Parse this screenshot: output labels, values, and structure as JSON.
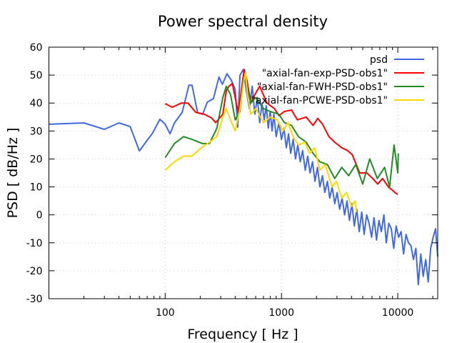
{
  "chart_data": {
    "type": "line",
    "title": "Power spectral density",
    "xlabel": "Frequency [ Hz ]",
    "ylabel": "PSD [ dB/Hz ]",
    "xscale": "log",
    "xlim": [
      10,
      22050
    ],
    "ylim": [
      -30,
      60
    ],
    "xticks": [
      100,
      1000,
      10000
    ],
    "xtick_labels": [
      "100",
      "1000",
      "10000"
    ],
    "yticks": [
      -30,
      -20,
      -10,
      0,
      10,
      20,
      30,
      40,
      50,
      60
    ],
    "ytick_labels": [
      "-30",
      "-20",
      "-10",
      "0",
      "10",
      "20",
      "30",
      "40",
      "50",
      "60"
    ],
    "grid": true,
    "legend_position": "top-right",
    "series": [
      {
        "name": "psd",
        "color": "#4169e1",
        "x": [
          10,
          20,
          30,
          40,
          50,
          60,
          78,
          90,
          100,
          110,
          120,
          140,
          160,
          170,
          190,
          210,
          230,
          260,
          290,
          310,
          340,
          370,
          400,
          420,
          440,
          470,
          500,
          530,
          560,
          590,
          620,
          650,
          680,
          710,
          740,
          770,
          800,
          830,
          860,
          900,
          950,
          1000,
          1050,
          1100,
          1150,
          1200,
          1260,
          1320,
          1380,
          1450,
          1520,
          1600,
          1680,
          1760,
          1850,
          1940,
          2040,
          2140,
          2250,
          2360,
          2480,
          2600,
          2730,
          2870,
          3010,
          3160,
          3320,
          3490,
          3660,
          3840,
          4030,
          4230,
          4440,
          4660,
          4900,
          5140,
          5400,
          5670,
          5950,
          6250,
          6560,
          6890,
          7230,
          7590,
          7970,
          8370,
          8790,
          9230,
          9690,
          10170,
          10680,
          11210,
          11770,
          12360,
          12980,
          13630,
          14310,
          15020,
          15770,
          16560,
          17390,
          18260,
          19170,
          20130,
          21130,
          22050
        ],
        "y": [
          32.4,
          32.9,
          30.6,
          32.9,
          31.6,
          22.9,
          29.3,
          34.2,
          32.4,
          29,
          32.9,
          36.7,
          46.4,
          46.4,
          36.5,
          36,
          40.3,
          41.6,
          49.3,
          46.7,
          50.5,
          48.2,
          44.9,
          31.4,
          50,
          52,
          44,
          38,
          46,
          36,
          42,
          33,
          40,
          34,
          39,
          31,
          37,
          30,
          36,
          28,
          33,
          27,
          31,
          24,
          29,
          22,
          27,
          20,
          25,
          19,
          23,
          16,
          21,
          15,
          19,
          12,
          17,
          10,
          14,
          8,
          12,
          6,
          10,
          4,
          8,
          2,
          6,
          0,
          5,
          -2,
          4,
          -4,
          2,
          -6,
          1,
          -7,
          0,
          -3,
          -8,
          -1,
          -9,
          -2,
          -6,
          0,
          -10,
          -3,
          -5,
          -12,
          -4,
          -8,
          -6,
          -14,
          -7,
          -10,
          -11,
          -16,
          -12,
          -25,
          -14,
          -22,
          -16,
          -24,
          -12,
          -8,
          -5,
          -15
        ]
      },
      {
        "name": "\"axial-fan-exp-PSD-obs1\"",
        "color": "#ff0000",
        "x": [
          100,
          115,
          138,
          157,
          183,
          217,
          250,
          272,
          313,
          335,
          353,
          378,
          425,
          478,
          505,
          545,
          590,
          650,
          750,
          870,
          950,
          1060,
          1220,
          1370,
          1630,
          1870,
          2050,
          2250,
          2560,
          2870,
          3300,
          3700,
          4070,
          4700,
          5420,
          6100,
          6720,
          7400,
          8300,
          8900,
          9450,
          10000
        ],
        "y": [
          39.8,
          38.5,
          40,
          40,
          36.7,
          36,
          34.7,
          33,
          36,
          44.4,
          46,
          47,
          36.5,
          52,
          48,
          40,
          43,
          46,
          40,
          38,
          35.5,
          37,
          37.5,
          34,
          35,
          32,
          34.5,
          32.5,
          28,
          26,
          24,
          23,
          21.5,
          15,
          15,
          13,
          11,
          13,
          10,
          9,
          8,
          7.3
        ]
      },
      {
        "name": "\"axial-fan-FWH-PSD-obs1\"",
        "color": "#228b22",
        "x": [
          100,
          120,
          144,
          170,
          210,
          240,
          278,
          313,
          335,
          365,
          400,
          440,
          470,
          490,
          510,
          545,
          600,
          700,
          800,
          950,
          1060,
          1220,
          1400,
          1630,
          1870,
          2140,
          2480,
          2870,
          3300,
          3780,
          4350,
          5000,
          5740,
          6670,
          7700,
          8500,
          9300,
          10000,
          10100
        ],
        "y": [
          20.5,
          25.5,
          28,
          27,
          25.5,
          25.5,
          31,
          42,
          46,
          43,
          34,
          37,
          48,
          50,
          45,
          40,
          42,
          38,
          37,
          36,
          33,
          32,
          28,
          26,
          22,
          19,
          18,
          13,
          17,
          14,
          18,
          11,
          20,
          13,
          17,
          10,
          25,
          15,
          22
        ]
      },
      {
        "name": "\"axial-fan-PCWE-PSD-obs1\"",
        "color": "#ffd700",
        "x": [
          100,
          120,
          144,
          170,
          205,
          240,
          278,
          313,
          335,
          365,
          400,
          440,
          470,
          490,
          510,
          545,
          600,
          700,
          800,
          920,
          1030,
          1140,
          1260,
          1400,
          1590,
          1750,
          1930,
          2140,
          2380,
          2730,
          2970,
          3300,
          3630,
          4000,
          4300,
          4400
        ],
        "y": [
          16,
          19,
          21,
          21,
          24,
          26,
          28,
          35,
          38,
          34,
          30,
          38,
          47,
          51,
          43,
          36,
          38,
          33,
          35,
          34,
          30,
          33,
          28,
          25,
          26,
          22,
          24,
          16,
          18,
          10,
          12,
          6,
          8,
          3,
          5,
          1
        ]
      }
    ]
  }
}
